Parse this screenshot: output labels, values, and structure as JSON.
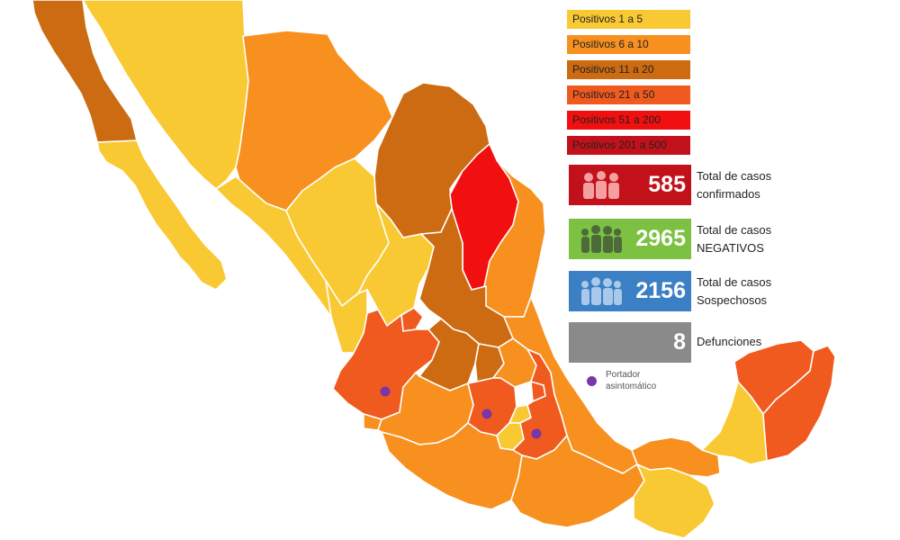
{
  "legend": [
    {
      "label": "Positivos 1 a 5",
      "color": "#f9c934"
    },
    {
      "label": "Positivos 6 a 10",
      "color": "#f7901e"
    },
    {
      "label": "Positivos 11 a 20",
      "color": "#cc6b12"
    },
    {
      "label": "Positivos 21 a 50",
      "color": "#f05a1f"
    },
    {
      "label": "Positivos 51 a 200",
      "color": "#f20f0f"
    },
    {
      "label": "Positivos 201 a 500",
      "color": "#c2111a"
    }
  ],
  "stats": [
    {
      "value": "585",
      "label": "Total de casos\nconfirmados",
      "color": "#c2111a",
      "icon": "people-icon"
    },
    {
      "value": "2965",
      "label": "Total de casos\nNEGATIVOS",
      "color": "#7cc142",
      "icon": "people-icon"
    },
    {
      "value": "2156",
      "label": "Total de casos\nSospechosos",
      "color": "#3b7fc4",
      "icon": "people-icon"
    },
    {
      "value": "8",
      "label": "Defunciones",
      "color": "#8a8a8a",
      "icon": ""
    }
  ],
  "carrier": {
    "label": "Portador\nasintomático",
    "color": "#7a35a6"
  },
  "state_colors": {
    "range_1_5": "#f9c934",
    "range_6_10": "#f7901e",
    "range_11_20": "#cc6b12",
    "range_21_50": "#f05a1f",
    "range_51_200": "#f20f0f",
    "range_201_500": "#c2111a"
  }
}
